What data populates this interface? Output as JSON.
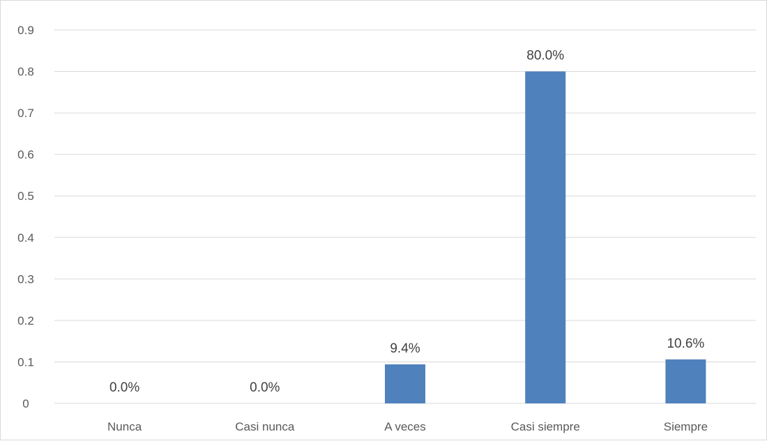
{
  "chart_data": {
    "type": "bar",
    "categories": [
      "Nunca",
      "Casi nunca",
      "A veces",
      "Casi siempre",
      "Siempre"
    ],
    "values": [
      0.0,
      0.0,
      0.094,
      0.8,
      0.106
    ],
    "data_labels": [
      "0.0%",
      "0.0%",
      "9.4%",
      "80.0%",
      "10.6%"
    ],
    "yticks": [
      "0",
      "0.1",
      "0.2",
      "0.3",
      "0.4",
      "0.5",
      "0.6",
      "0.7",
      "0.8",
      "0.9"
    ],
    "ylim": [
      0,
      0.9
    ],
    "grid": true,
    "legend": "none",
    "bar_color": "#4f81bd",
    "grid_color": "#d9d9d9"
  }
}
